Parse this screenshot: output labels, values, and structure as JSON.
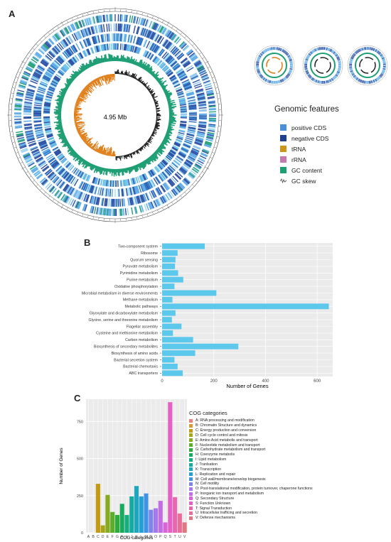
{
  "panels": {
    "a": "A",
    "b": "B",
    "c": "C"
  },
  "genome": {
    "size_label": "4.95 Mb",
    "legend_title": "Genomic features",
    "features": [
      {
        "label": "positive CDS",
        "color": "#4a90d9"
      },
      {
        "label": "negative CDS",
        "color": "#1f3f8f"
      },
      {
        "label": "tRNA",
        "color": "#c9951a"
      },
      {
        "label": "rRNA",
        "color": "#c47ab0"
      },
      {
        "label": "GC content",
        "color": "#1e9e74"
      },
      {
        "label": "GC skew",
        "color": "#555555",
        "icon": "gc-skew-icon"
      }
    ],
    "colors": {
      "ring_light": "#5aa9e6",
      "ring_dark": "#2b4fa3",
      "gc": "#1e9e74",
      "skew_pos": "#111111",
      "skew_neg": "#e07a10"
    }
  },
  "chart_data": [
    {
      "type": "bar",
      "orientation": "horizontal",
      "title": "",
      "xlabel": "Number of Genes",
      "ylabel": "",
      "xlim": [
        0,
        660
      ],
      "xticks": [
        0,
        200,
        400,
        600
      ],
      "grid": true,
      "color": "#5bc8ec",
      "categories": [
        "Two-component system",
        "Ribosome",
        "Quorum sensing",
        "Pyruvate metabolism",
        "Pyrimidine metabolism",
        "Purine metabolism",
        "Oxidative phosphorylation",
        "Microbial metabolism in diverse environments",
        "Methane metabolism",
        "Metabolic pathways",
        "Glyoxylate and dicarboxylate metabolism",
        "Glycine, serine and threonine metabolism",
        "Flagellar assembly",
        "Cysteine and methionine metabolism",
        "Carbon metabolism",
        "Biosynthesis of secondary metabolites",
        "Biosynthesis of amino acids",
        "Bacterial secretion system",
        "Bacterial chemotaxis",
        "ABC transporters"
      ],
      "values": [
        165,
        60,
        52,
        50,
        62,
        82,
        48,
        210,
        40,
        645,
        52,
        38,
        75,
        42,
        120,
        295,
        128,
        48,
        60,
        80
      ]
    },
    {
      "type": "bar",
      "title": "",
      "xlabel": "COG categories",
      "ylabel": "Number of Genes",
      "ylim": [
        0,
        900
      ],
      "yticks": [
        0,
        250,
        500,
        750
      ],
      "grid": true,
      "legend_title": "COG categories",
      "legend_position": "right",
      "categories": [
        "A",
        "B",
        "C",
        "D",
        "E",
        "F",
        "G",
        "H",
        "I",
        "J",
        "K",
        "L",
        "M",
        "N",
        "O",
        "P",
        "Q",
        "S",
        "T",
        "U",
        "V"
      ],
      "values": [
        0,
        0,
        330,
        50,
        255,
        140,
        120,
        195,
        120,
        245,
        315,
        245,
        265,
        155,
        165,
        215,
        70,
        880,
        240,
        130,
        70
      ],
      "colors": [
        "#e8837a",
        "#d99a3a",
        "#c49a12",
        "#a8a41a",
        "#86ab20",
        "#5aaf2a",
        "#2eaa3e",
        "#17ab5e",
        "#15ac82",
        "#17aaa2",
        "#1aa7bf",
        "#22a0d6",
        "#3f93e6",
        "#7d84ec",
        "#a578ec",
        "#c46ce6",
        "#d864d8",
        "#e561c6",
        "#ea66b0",
        "#e86d98",
        "#e3767e"
      ],
      "legend": [
        "A: RNA processing and modification",
        "B: Chromatin Structure and dynamics",
        "C: Energy production and conversion",
        "D: Cell cycle control and mitosis",
        "E: Amino Acid metabolis and transport",
        "F: Nucleotide metabolism and transport",
        "G: Carbohydrate metabolism and transport",
        "H: Coenzyme metabolis",
        "I: Lipid metabolism",
        "J: Tranlsation",
        "K: Transcription",
        "L: Replication and repair",
        "M: Cell wall/membrane/envelop biogenesis",
        "N: Cell motility",
        "O: Post-translational modification, protein turnover, chaperone functions",
        "P: Inorganic ion transport and metabolism",
        "Q: Secondary Structure",
        "S: Function Unknown",
        "T: Signal Transduction",
        "U: Intracellular trafficing and secretion",
        "V: Defense mechanisms"
      ]
    }
  ]
}
